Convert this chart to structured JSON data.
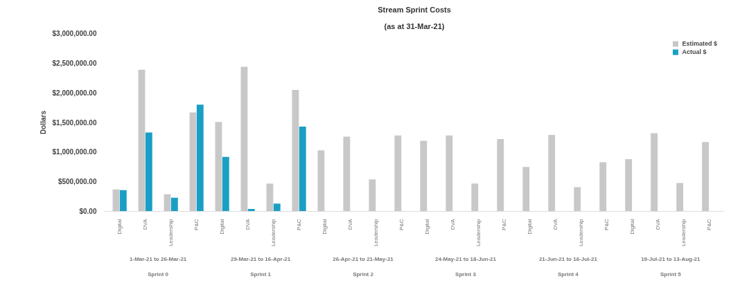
{
  "chart_data": {
    "type": "bar",
    "title": "Stream Sprint Costs",
    "subtitle": "(as at 31-Mar-21)",
    "ylabel": "Dollars",
    "categories": [
      "Digital",
      "DVA",
      "Leadership",
      "P&C",
      "Digital",
      "DVA",
      "Leadership",
      "P&C",
      "Digital",
      "DVA",
      "Leadership",
      "P&C",
      "Digital",
      "DVA",
      "Leadership",
      "P&C",
      "Digital",
      "DVA",
      "Leadership",
      "P&C",
      "Digital",
      "DVA",
      "Leadership",
      "P&C"
    ],
    "series": [
      {
        "name": "Estimated $",
        "color": "#c8c8c8",
        "values": [
          370000,
          2390000,
          290000,
          1670000,
          1510000,
          2440000,
          470000,
          2050000,
          1030000,
          1260000,
          540000,
          1280000,
          1190000,
          1280000,
          470000,
          1220000,
          750000,
          1290000,
          410000,
          830000,
          880000,
          1320000,
          480000,
          1170000
        ]
      },
      {
        "name": "Actual $",
        "color": "#1a9fc4",
        "values": [
          360000,
          1330000,
          230000,
          1800000,
          920000,
          40000,
          130000,
          1430000,
          null,
          null,
          null,
          null,
          null,
          null,
          null,
          null,
          null,
          null,
          null,
          null,
          null,
          null,
          null,
          null
        ]
      }
    ],
    "ylim": [
      0,
      3000000
    ],
    "yticks": [
      {
        "value": 0,
        "label": "$0.00"
      },
      {
        "value": 500000,
        "label": "$500,000.00"
      },
      {
        "value": 1000000,
        "label": "$1,000,000.00"
      },
      {
        "value": 1500000,
        "label": "$1,500,000.00"
      },
      {
        "value": 2000000,
        "label": "$2,000,000.00"
      },
      {
        "value": 2500000,
        "label": "$2,500,000.00"
      },
      {
        "value": 3000000,
        "label": "$3,000,000.00"
      }
    ],
    "annotations": [
      "1-Mar-21 to 26-Mar-21",
      "Sprint 0",
      "29-Mar-21 to 16-Apr-21",
      "Sprint 1",
      "26-Apr-21 to 21-May-21",
      "Sprint 2",
      "24-May-21 to 18-Jun-21",
      "Sprint 3",
      "21-Jun-21 to 16-Jul-21",
      "Sprint 4",
      "19-Jul-21 to 13-Aug-21",
      "Sprint 5"
    ],
    "grid": false,
    "legend": "top right"
  }
}
